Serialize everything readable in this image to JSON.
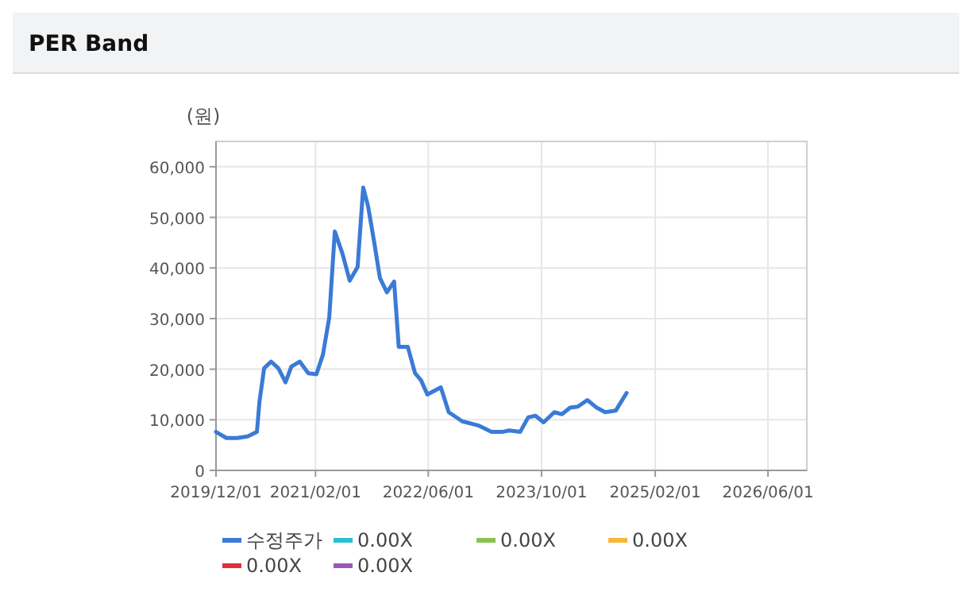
{
  "chart_data": {
    "type": "line",
    "title": "PER Band",
    "ylabel": "(원)",
    "x": [
      "2019-12-01",
      "2020-01-15",
      "2020-03-01",
      "2020-04-15",
      "2020-05-25",
      "2020-06-05",
      "2020-06-25",
      "2020-07-25",
      "2020-08-25",
      "2020-09-25",
      "2020-10-20",
      "2020-11-25",
      "2021-01-01",
      "2021-02-05",
      "2021-03-05",
      "2021-04-01",
      "2021-04-25",
      "2021-05-28",
      "2021-06-28",
      "2021-08-01",
      "2021-08-25",
      "2021-09-15",
      "2021-10-12",
      "2021-11-05",
      "2021-12-05",
      "2022-01-05",
      "2022-01-25",
      "2022-03-05",
      "2022-04-05",
      "2022-05-01",
      "2022-05-28",
      "2022-07-25",
      "2022-08-28",
      "2022-10-25",
      "2023-01-01",
      "2023-02-28",
      "2023-04-15",
      "2023-05-15",
      "2023-07-01",
      "2023-08-05",
      "2023-09-05",
      "2023-10-10",
      "2023-11-25",
      "2023-12-28",
      "2024-02-01",
      "2024-03-05",
      "2024-04-15",
      "2024-05-25",
      "2024-07-01",
      "2024-08-15",
      "2024-10-01"
    ],
    "series": [
      {
        "name": "수정주가",
        "color": "#3a7bd5",
        "values": [
          7600,
          6400,
          6400,
          6700,
          7600,
          13600,
          20200,
          21500,
          20200,
          17400,
          20500,
          21500,
          19200,
          19000,
          22900,
          30200,
          47200,
          42800,
          37500,
          40200,
          55900,
          52200,
          44900,
          38000,
          35200,
          37300,
          24400,
          24400,
          19200,
          17800,
          15000,
          16400,
          11500,
          9700,
          8900,
          7600,
          7600,
          7900,
          7600,
          10500,
          10800,
          9500,
          11500,
          11100,
          12400,
          12600,
          13900,
          12400,
          11500,
          11800,
          15300
        ]
      },
      {
        "name": "0.00X",
        "color": "#2bbfcf",
        "values": [
          null,
          null,
          null,
          null,
          null,
          null,
          null,
          null,
          null,
          null,
          null,
          null,
          null,
          null,
          null,
          null,
          null,
          null,
          null,
          null,
          null,
          null,
          null,
          null,
          null,
          null,
          null,
          null,
          null,
          null,
          null,
          null,
          null,
          null,
          null,
          null,
          null,
          null,
          null,
          null,
          null,
          null,
          null,
          null,
          null,
          null,
          null,
          null,
          null,
          null,
          null
        ]
      },
      {
        "name": "0.00X",
        "color": "#8cc152",
        "values": [
          null,
          null,
          null,
          null,
          null,
          null,
          null,
          null,
          null,
          null,
          null,
          null,
          null,
          null,
          null,
          null,
          null,
          null,
          null,
          null,
          null,
          null,
          null,
          null,
          null,
          null,
          null,
          null,
          null,
          null,
          null,
          null,
          null,
          null,
          null,
          null,
          null,
          null,
          null,
          null,
          null,
          null,
          null,
          null,
          null,
          null,
          null,
          null,
          null,
          null,
          null
        ]
      },
      {
        "name": "0.00X",
        "color": "#f6b73c",
        "values": [
          null,
          null,
          null,
          null,
          null,
          null,
          null,
          null,
          null,
          null,
          null,
          null,
          null,
          null,
          null,
          null,
          null,
          null,
          null,
          null,
          null,
          null,
          null,
          null,
          null,
          null,
          null,
          null,
          null,
          null,
          null,
          null,
          null,
          null,
          null,
          null,
          null,
          null,
          null,
          null,
          null,
          null,
          null,
          null,
          null,
          null,
          null,
          null,
          null,
          null,
          null
        ]
      },
      {
        "name": "0.00X",
        "color": "#e0303a",
        "values": [
          null,
          null,
          null,
          null,
          null,
          null,
          null,
          null,
          null,
          null,
          null,
          null,
          null,
          null,
          null,
          null,
          null,
          null,
          null,
          null,
          null,
          null,
          null,
          null,
          null,
          null,
          null,
          null,
          null,
          null,
          null,
          null,
          null,
          null,
          null,
          null,
          null,
          null,
          null,
          null,
          null,
          null,
          null,
          null,
          null,
          null,
          null,
          null,
          null,
          null,
          null
        ]
      },
      {
        "name": "0.00X",
        "color": "#9b59b6",
        "values": [
          null,
          null,
          null,
          null,
          null,
          null,
          null,
          null,
          null,
          null,
          null,
          null,
          null,
          null,
          null,
          null,
          null,
          null,
          null,
          null,
          null,
          null,
          null,
          null,
          null,
          null,
          null,
          null,
          null,
          null,
          null,
          null,
          null,
          null,
          null,
          null,
          null,
          null,
          null,
          null,
          null,
          null,
          null,
          null,
          null,
          null,
          null,
          null,
          null,
          null,
          null
        ]
      }
    ],
    "xlim": [
      "2019-12-01",
      "2026-11-15"
    ],
    "xticks": [
      {
        "value": "2019-12-01",
        "label": "2019/12/01"
      },
      {
        "value": "2021-02-01",
        "label": "2021/02/01"
      },
      {
        "value": "2022-06-01",
        "label": "2022/06/01"
      },
      {
        "value": "2023-10-01",
        "label": "2023/10/01"
      },
      {
        "value": "2025-02-01",
        "label": "2025/02/01"
      },
      {
        "value": "2026-06-01",
        "label": "2026/06/01"
      }
    ],
    "ylim": [
      0,
      65000
    ],
    "yticks": [
      0,
      {
        "value": 10000,
        "label": "10,000"
      },
      {
        "value": 20000,
        "label": "20,000"
      },
      {
        "value": 30000,
        "label": "30,000"
      },
      {
        "value": 40000,
        "label": "40,000"
      },
      {
        "value": 50000,
        "label": "50,000"
      },
      {
        "value": 60000,
        "label": "60,000"
      }
    ],
    "grid": true,
    "legend": "bottom",
    "marker": "none",
    "line_style": "solid"
  }
}
